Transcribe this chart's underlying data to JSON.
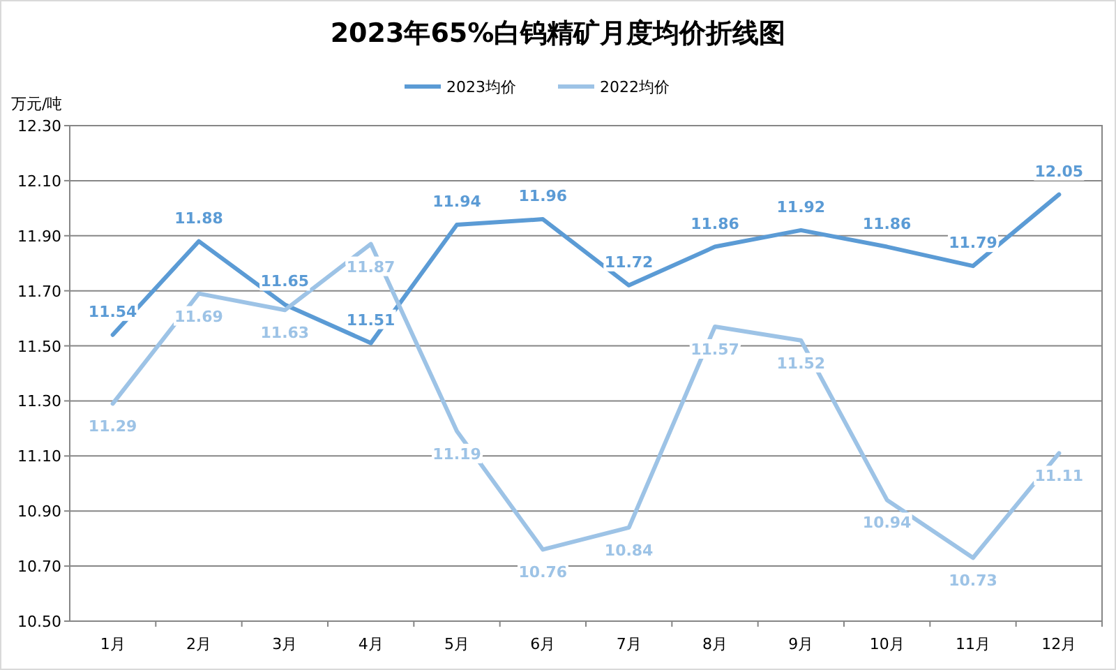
{
  "chart_data": {
    "type": "line",
    "title": "2023年65%白钨精矿月度均价折线图",
    "ylabel": "万元/吨",
    "categories": [
      "1月",
      "2月",
      "3月",
      "4月",
      "5月",
      "6月",
      "7月",
      "8月",
      "9月",
      "10月",
      "11月",
      "12月"
    ],
    "series": [
      {
        "name": "2023均价",
        "color": "#5b9bd5",
        "values": [
          11.54,
          11.88,
          11.65,
          11.51,
          11.94,
          11.96,
          11.72,
          11.86,
          11.92,
          11.86,
          11.79,
          12.05
        ]
      },
      {
        "name": "2022均价",
        "color": "#9dc3e6",
        "values": [
          11.29,
          11.69,
          11.63,
          11.87,
          11.19,
          10.76,
          10.84,
          11.57,
          11.52,
          10.94,
          10.73,
          11.11
        ]
      }
    ],
    "ylim": [
      10.5,
      12.3
    ],
    "yticks": [
      {
        "value": 10.5,
        "label": "10.50"
      },
      {
        "value": 10.7,
        "label": "10.70"
      },
      {
        "value": 10.9,
        "label": "10.90"
      },
      {
        "value": 11.1,
        "label": "11.10"
      },
      {
        "value": 11.3,
        "label": "11.30"
      },
      {
        "value": 11.5,
        "label": "11.50"
      },
      {
        "value": 11.7,
        "label": "11.70"
      },
      {
        "value": 11.9,
        "label": "11.90"
      },
      {
        "value": 12.1,
        "label": "12.10"
      },
      {
        "value": 12.3,
        "label": "12.30"
      }
    ],
    "grid": "y",
    "legend": "top",
    "marker": "none",
    "line_style": "solid",
    "data_labels": true
  }
}
